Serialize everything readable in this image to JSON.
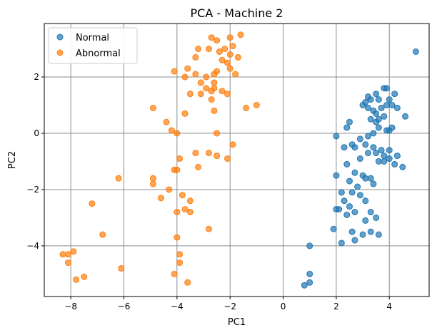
{
  "chart_data": {
    "type": "scatter",
    "title": "PCA - Machine 2",
    "xlabel": "PC1",
    "ylabel": "PC2",
    "xlim": [
      -9,
      5.5
    ],
    "ylim": [
      -5.8,
      3.9
    ],
    "xticks": [
      -8,
      -6,
      -4,
      -2,
      0,
      2,
      4
    ],
    "yticks": [
      -4,
      -2,
      0,
      2
    ],
    "grid": true,
    "legend_position": "top-left",
    "series": [
      {
        "name": "Normal",
        "color": "#1f77b4",
        "points": [
          [
            5.0,
            2.9
          ],
          [
            3.3,
            1.2
          ],
          [
            3.2,
            1.3
          ],
          [
            3.5,
            1.4
          ],
          [
            3.8,
            1.6
          ],
          [
            3.9,
            1.6
          ],
          [
            4.2,
            1.4
          ],
          [
            3.1,
            1.1
          ],
          [
            3.6,
            1.2
          ],
          [
            3.0,
            1.0
          ],
          [
            3.2,
            0.9
          ],
          [
            3.4,
            0.8
          ],
          [
            3.5,
            0.7
          ],
          [
            3.7,
            0.9
          ],
          [
            3.9,
            1.0
          ],
          [
            4.0,
            1.2
          ],
          [
            4.3,
            0.9
          ],
          [
            4.1,
            1.0
          ],
          [
            4.6,
            0.6
          ],
          [
            3.3,
            0.5
          ],
          [
            3.5,
            0.4
          ],
          [
            3.6,
            0.5
          ],
          [
            3.8,
            0.6
          ],
          [
            2.5,
            0.4
          ],
          [
            2.4,
            0.2
          ],
          [
            2.0,
            -0.1
          ],
          [
            3.4,
            0.0
          ],
          [
            3.2,
            -0.1
          ],
          [
            3.6,
            0.2
          ],
          [
            3.9,
            0.1
          ],
          [
            4.0,
            0.1
          ],
          [
            4.1,
            0.2
          ],
          [
            2.9,
            -0.2
          ],
          [
            2.6,
            -0.4
          ],
          [
            2.7,
            -0.5
          ],
          [
            3.1,
            -0.4
          ],
          [
            3.4,
            -0.5
          ],
          [
            2.3,
            -0.5
          ],
          [
            3.5,
            -0.7
          ],
          [
            3.7,
            -0.6
          ],
          [
            4.0,
            -0.6
          ],
          [
            3.8,
            -0.8
          ],
          [
            4.3,
            -0.8
          ],
          [
            3.2,
            -0.7
          ],
          [
            2.9,
            -0.9
          ],
          [
            3.6,
            -1.0
          ],
          [
            4.0,
            -0.9
          ],
          [
            4.2,
            -1.1
          ],
          [
            3.8,
            -1.0
          ],
          [
            4.5,
            -1.2
          ],
          [
            2.4,
            -1.1
          ],
          [
            3.0,
            -1.5
          ],
          [
            2.7,
            -1.4
          ],
          [
            3.1,
            -1.6
          ],
          [
            3.3,
            -1.6
          ],
          [
            3.4,
            -1.8
          ],
          [
            2.5,
            -1.7
          ],
          [
            2.8,
            -1.9
          ],
          [
            2.0,
            -1.5
          ],
          [
            2.6,
            -2.1
          ],
          [
            2.2,
            -2.1
          ],
          [
            2.9,
            -2.2
          ],
          [
            2.3,
            -2.4
          ],
          [
            2.5,
            -2.6
          ],
          [
            2.7,
            -2.8
          ],
          [
            3.1,
            -2.4
          ],
          [
            2.1,
            -2.7
          ],
          [
            2.4,
            -2.9
          ],
          [
            3.3,
            -2.8
          ],
          [
            3.5,
            -3.0
          ],
          [
            3.1,
            -3.1
          ],
          [
            2.0,
            -2.7
          ],
          [
            1.9,
            -3.4
          ],
          [
            2.6,
            -3.5
          ],
          [
            3.0,
            -3.6
          ],
          [
            2.2,
            -3.9
          ],
          [
            3.6,
            -3.6
          ],
          [
            1.0,
            -4.0
          ],
          [
            1.0,
            -5.0
          ],
          [
            1.0,
            -5.3
          ],
          [
            0.8,
            -5.4
          ],
          [
            2.7,
            -3.8
          ],
          [
            3.3,
            -3.5
          ]
        ]
      },
      {
        "name": "Abnormal",
        "color": "#ff7f0e",
        "points": [
          [
            -1.6,
            3.5
          ],
          [
            -2.0,
            3.4
          ],
          [
            -2.7,
            3.4
          ],
          [
            -2.5,
            3.3
          ],
          [
            -2.8,
            3.0
          ],
          [
            -2.2,
            3.0
          ],
          [
            -2.4,
            2.9
          ],
          [
            -1.9,
            3.1
          ],
          [
            -2.0,
            2.8
          ],
          [
            -1.7,
            2.7
          ],
          [
            -2.3,
            2.6
          ],
          [
            -2.1,
            2.5
          ],
          [
            -2.5,
            2.2
          ],
          [
            -2.0,
            2.3
          ],
          [
            -1.8,
            2.1
          ],
          [
            -2.6,
            2.1
          ],
          [
            -3.2,
            3.0
          ],
          [
            -3.6,
            2.3
          ],
          [
            -3.3,
            2.7
          ],
          [
            -4.1,
            2.2
          ],
          [
            -3.7,
            2.0
          ],
          [
            -3.3,
            2.1
          ],
          [
            -2.9,
            2.0
          ],
          [
            -2.6,
            1.8
          ],
          [
            -2.9,
            1.6
          ],
          [
            -2.3,
            1.5
          ],
          [
            -2.6,
            1.6
          ],
          [
            -3.1,
            1.4
          ],
          [
            -3.5,
            1.4
          ],
          [
            -3.1,
            1.8
          ],
          [
            -2.1,
            1.4
          ],
          [
            -2.7,
            1.5
          ],
          [
            -2.7,
            1.2
          ],
          [
            -2.6,
            0.8
          ],
          [
            -3.7,
            0.7
          ],
          [
            -4.9,
            0.9
          ],
          [
            -1.4,
            0.9
          ],
          [
            -1.0,
            1.0
          ],
          [
            -4.4,
            0.4
          ],
          [
            -4.2,
            0.1
          ],
          [
            -4.0,
            0.0
          ],
          [
            -2.5,
            0.0
          ],
          [
            -1.9,
            -0.4
          ],
          [
            -2.8,
            -0.7
          ],
          [
            -2.1,
            -0.9
          ],
          [
            -3.3,
            -0.7
          ],
          [
            -3.9,
            -0.9
          ],
          [
            -4.1,
            -1.3
          ],
          [
            -3.2,
            -1.2
          ],
          [
            -2.5,
            -0.8
          ],
          [
            -4.0,
            -1.3
          ],
          [
            -4.9,
            -1.6
          ],
          [
            -4.9,
            -1.8
          ],
          [
            -6.2,
            -1.6
          ],
          [
            -4.3,
            -2.0
          ],
          [
            -3.8,
            -2.2
          ],
          [
            -4.6,
            -2.3
          ],
          [
            -3.5,
            -2.4
          ],
          [
            -7.2,
            -2.5
          ],
          [
            -3.7,
            -2.7
          ],
          [
            -4.0,
            -2.8
          ],
          [
            -3.5,
            -2.8
          ],
          [
            -2.8,
            -3.4
          ],
          [
            -6.8,
            -3.6
          ],
          [
            -4.0,
            -3.7
          ],
          [
            -7.9,
            -4.2
          ],
          [
            -8.3,
            -4.3
          ],
          [
            -8.1,
            -4.3
          ],
          [
            -8.1,
            -4.6
          ],
          [
            -3.9,
            -4.3
          ],
          [
            -6.1,
            -4.8
          ],
          [
            -4.1,
            -5.0
          ],
          [
            -7.5,
            -5.1
          ],
          [
            -7.8,
            -5.2
          ],
          [
            -3.9,
            -4.6
          ],
          [
            -3.6,
            -5.3
          ]
        ]
      }
    ]
  }
}
